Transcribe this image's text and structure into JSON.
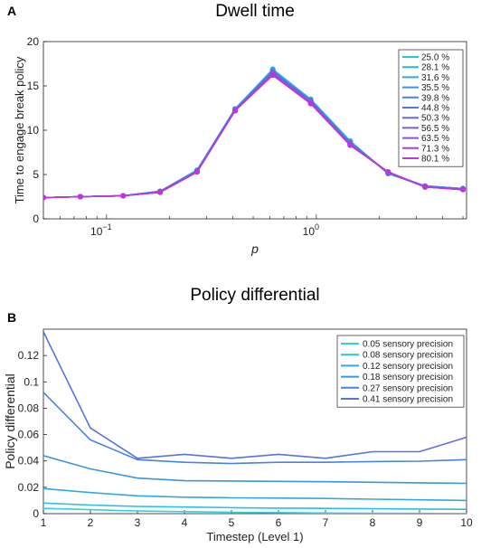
{
  "panels": {
    "a_label": "A",
    "b_label": "B"
  },
  "chart_data": [
    {
      "type": "line",
      "title": "Dwell time",
      "xlabel": "p",
      "ylabel": "Time to engage break policy",
      "xscale": "log",
      "xlim": [
        0.05,
        5.2
      ],
      "ylim": [
        0,
        20
      ],
      "yticks": [
        0,
        5,
        10,
        15,
        20
      ],
      "xtick_labels": [
        {
          "value": 0.1,
          "base": "10",
          "exp": "−1"
        },
        {
          "value": 1,
          "base": "10",
          "exp": "0"
        }
      ],
      "grid": false,
      "legend_position": "right",
      "markers": true,
      "x": [
        0.05,
        0.075,
        0.12,
        0.18,
        0.27,
        0.41,
        0.62,
        0.94,
        1.45,
        2.2,
        3.3,
        5.0
      ],
      "series": [
        {
          "name": "25.0 %",
          "color": "#27c7d8",
          "values": [
            2.4,
            2.5,
            2.6,
            3.1,
            5.5,
            12.4,
            16.9,
            13.5,
            8.8,
            5.1,
            3.7,
            3.4
          ]
        },
        {
          "name": "28.1 %",
          "color": "#2cb6dc",
          "values": [
            2.4,
            2.5,
            2.6,
            3.1,
            5.5,
            12.4,
            16.8,
            13.5,
            8.7,
            5.1,
            3.7,
            3.4
          ]
        },
        {
          "name": "31.6 %",
          "color": "#33a5df",
          "values": [
            2.4,
            2.5,
            2.6,
            3.1,
            5.4,
            12.4,
            16.8,
            13.4,
            8.7,
            5.1,
            3.7,
            3.4
          ]
        },
        {
          "name": "35.5 %",
          "color": "#3a94e0",
          "values": [
            2.4,
            2.5,
            2.6,
            3.1,
            5.4,
            12.4,
            16.7,
            13.4,
            8.6,
            5.2,
            3.7,
            3.4
          ]
        },
        {
          "name": "39.8 %",
          "color": "#4384e0",
          "values": [
            2.4,
            2.5,
            2.6,
            3.1,
            5.4,
            12.3,
            16.6,
            13.3,
            8.6,
            5.2,
            3.7,
            3.4
          ]
        },
        {
          "name": "44.8 %",
          "color": "#4f75de",
          "values": [
            2.4,
            2.5,
            2.6,
            3.1,
            5.4,
            12.3,
            16.6,
            13.3,
            8.5,
            5.2,
            3.6,
            3.4
          ]
        },
        {
          "name": "50.3 %",
          "color": "#6669e0",
          "values": [
            2.4,
            2.5,
            2.6,
            3.0,
            5.3,
            12.3,
            16.5,
            13.2,
            8.5,
            5.2,
            3.6,
            3.3
          ]
        },
        {
          "name": "56.5 %",
          "color": "#7b5ee0",
          "values": [
            2.4,
            2.5,
            2.6,
            3.0,
            5.3,
            12.3,
            16.4,
            13.2,
            8.4,
            5.2,
            3.6,
            3.3
          ]
        },
        {
          "name": "63.5 %",
          "color": "#9150e0",
          "values": [
            2.4,
            2.5,
            2.6,
            3.0,
            5.3,
            12.2,
            16.4,
            13.1,
            8.4,
            5.3,
            3.6,
            3.3
          ]
        },
        {
          "name": "71.3 %",
          "color": "#a844df",
          "values": [
            2.4,
            2.5,
            2.6,
            3.0,
            5.3,
            12.2,
            16.3,
            13.1,
            8.3,
            5.3,
            3.6,
            3.3
          ]
        },
        {
          "name": "80.1 %",
          "color": "#bb36dd",
          "values": [
            2.4,
            2.5,
            2.6,
            3.0,
            5.3,
            12.2,
            16.2,
            13.0,
            8.3,
            5.3,
            3.6,
            3.3
          ]
        }
      ]
    },
    {
      "type": "line",
      "title": "Policy differential",
      "xlabel": "Timestep (Level 1)",
      "ylabel": "Policy differential",
      "xlim": [
        1,
        10
      ],
      "ylim": [
        0,
        0.14
      ],
      "yticks": [
        0,
        0.02,
        0.04,
        0.06,
        0.08,
        0.1,
        0.12
      ],
      "ytick_labels": [
        "0",
        "0.02",
        "0.04",
        "0.06",
        "0.08",
        "0.1",
        "0.12"
      ],
      "xticks": [
        1,
        2,
        3,
        4,
        5,
        6,
        7,
        8,
        9,
        10
      ],
      "grid": false,
      "legend_position": "top-right",
      "x": [
        1,
        2,
        3,
        4,
        5,
        6,
        7,
        8,
        9,
        10
      ],
      "series": [
        {
          "name": "0.05 sensory precision",
          "color": "#2cd3df",
          "values": [
            0.004,
            0.003,
            0.002,
            0.0015,
            0.001,
            0.0008,
            0.0005,
            0.0003,
            0.0002,
            0.0001
          ]
        },
        {
          "name": "0.08 sensory precision",
          "color": "#2bbfe0",
          "values": [
            0.008,
            0.0065,
            0.0055,
            0.005,
            0.0045,
            0.0042,
            0.004,
            0.0037,
            0.0035,
            0.0033
          ]
        },
        {
          "name": "0.12 sensory precision",
          "color": "#30a9e1",
          "values": [
            0.019,
            0.016,
            0.0135,
            0.0125,
            0.012,
            0.0118,
            0.0115,
            0.011,
            0.0105,
            0.01
          ]
        },
        {
          "name": "0.18 sensory precision",
          "color": "#3a95e2",
          "values": [
            0.044,
            0.034,
            0.027,
            0.025,
            0.0248,
            0.0245,
            0.0242,
            0.0238,
            0.0234,
            0.023
          ]
        },
        {
          "name": "0.27 sensory precision",
          "color": "#4684e1",
          "values": [
            0.092,
            0.056,
            0.041,
            0.039,
            0.038,
            0.039,
            0.039,
            0.0395,
            0.0398,
            0.041
          ]
        },
        {
          "name": "0.41 sensory precision",
          "color": "#5673df",
          "values": [
            0.138,
            0.065,
            0.042,
            0.045,
            0.042,
            0.045,
            0.042,
            0.047,
            0.047,
            0.058
          ]
        }
      ]
    }
  ]
}
